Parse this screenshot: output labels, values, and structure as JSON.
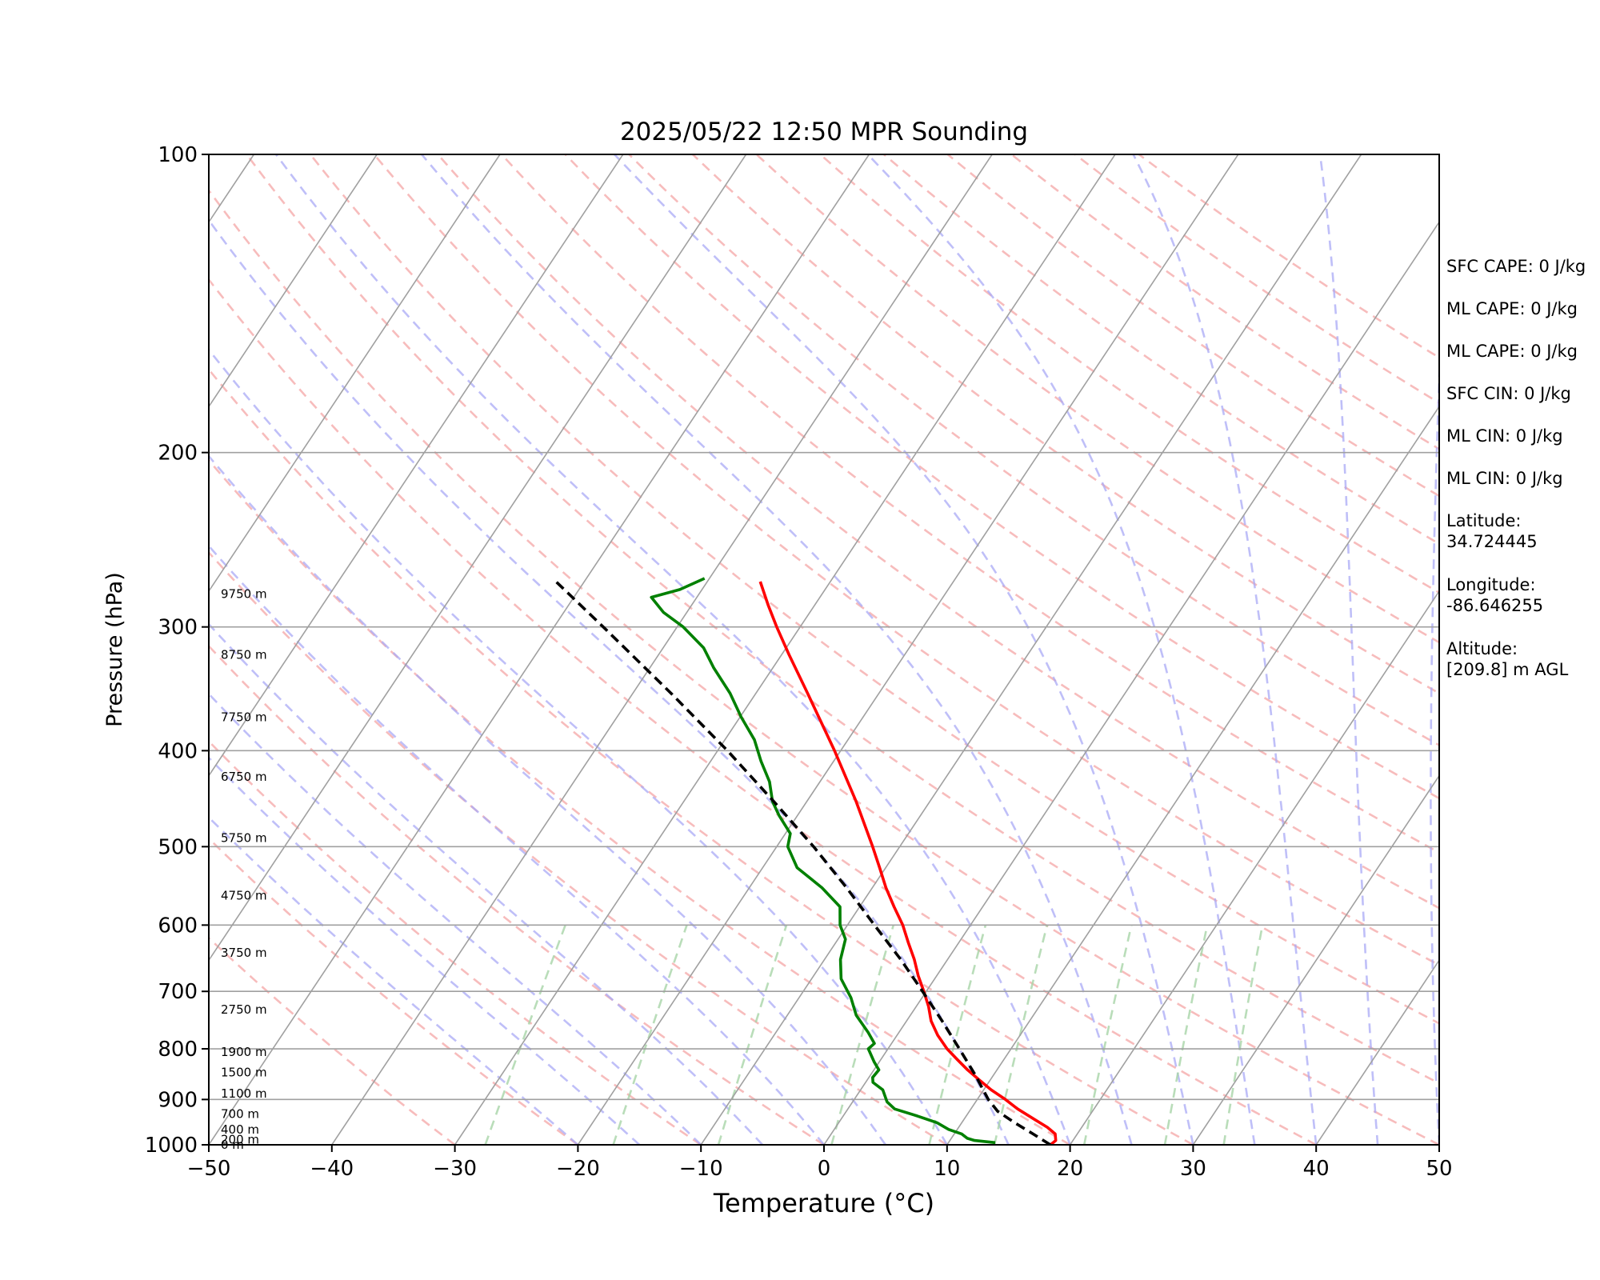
{
  "chart_data": {
    "type": "line",
    "title": "2025/05/22 12:50 MPR Sounding",
    "xlabel": "Temperature (°C)",
    "ylabel": "Pressure (hPa)",
    "xlim": [
      -50,
      50
    ],
    "ylim": [
      1000,
      100
    ],
    "y_scale": "log",
    "grid": true,
    "x_ticks": [
      -50,
      -40,
      -30,
      -20,
      -10,
      0,
      10,
      20,
      30,
      40,
      50
    ],
    "x_tick_labels": [
      "−50",
      "−40",
      "−30",
      "−20",
      "−10",
      "0",
      "10",
      "20",
      "30",
      "40",
      "50"
    ],
    "y_ticks": [
      1000,
      900,
      800,
      700,
      600,
      500,
      400,
      300,
      200,
      100
    ],
    "y_tick_labels": [
      "1000",
      "900",
      "800",
      "700",
      "600",
      "500",
      "400",
      "300",
      "200",
      "100"
    ],
    "height_labels": [
      {
        "p": 1000,
        "text": "0 m"
      },
      {
        "p": 988,
        "text": "200 m"
      },
      {
        "p": 965,
        "text": "400 m"
      },
      {
        "p": 931,
        "text": "700 m"
      },
      {
        "p": 888,
        "text": "1100 m"
      },
      {
        "p": 845,
        "text": "1500 m"
      },
      {
        "p": 806,
        "text": "1900 m"
      },
      {
        "p": 730,
        "text": "2750 m"
      },
      {
        "p": 640,
        "text": "3750 m"
      },
      {
        "p": 560,
        "text": "4750 m"
      },
      {
        "p": 490,
        "text": "5750 m"
      },
      {
        "p": 425,
        "text": "6750 m"
      },
      {
        "p": 370,
        "text": "7750 m"
      },
      {
        "p": 320,
        "text": "8750 m"
      },
      {
        "p": 278,
        "text": "9750 m"
      }
    ],
    "series": [
      {
        "name": "Temperature",
        "color": "#ff0000",
        "style": "solid",
        "points": [
          [
            1000,
            18.4
          ],
          [
            990,
            18.6
          ],
          [
            975,
            18.2
          ],
          [
            960,
            17.2
          ],
          [
            940,
            15.5
          ],
          [
            920,
            13.8
          ],
          [
            900,
            12.3
          ],
          [
            880,
            10.6
          ],
          [
            860,
            9.1
          ],
          [
            840,
            7.6
          ],
          [
            820,
            6.2
          ],
          [
            800,
            4.8
          ],
          [
            775,
            3.3
          ],
          [
            750,
            2.0
          ],
          [
            725,
            1.0
          ],
          [
            700,
            -0.2
          ],
          [
            675,
            -1.5
          ],
          [
            650,
            -2.7
          ],
          [
            625,
            -4.1
          ],
          [
            600,
            -5.5
          ],
          [
            575,
            -7.2
          ],
          [
            550,
            -8.9
          ],
          [
            525,
            -10.5
          ],
          [
            500,
            -12.2
          ],
          [
            450,
            -16.0
          ],
          [
            400,
            -20.5
          ],
          [
            350,
            -25.8
          ],
          [
            320,
            -29.4
          ],
          [
            300,
            -31.9
          ],
          [
            285,
            -33.8
          ],
          [
            270,
            -35.7
          ]
        ]
      },
      {
        "name": "Dewpoint",
        "color": "#008000",
        "style": "solid",
        "points": [
          [
            995,
            13.8
          ],
          [
            990,
            12.0
          ],
          [
            985,
            11.3
          ],
          [
            975,
            10.6
          ],
          [
            965,
            9.3
          ],
          [
            950,
            8.0
          ],
          [
            935,
            6.0
          ],
          [
            920,
            3.8
          ],
          [
            905,
            2.8
          ],
          [
            880,
            1.8
          ],
          [
            865,
            0.6
          ],
          [
            855,
            0.3
          ],
          [
            840,
            0.4
          ],
          [
            825,
            -0.4
          ],
          [
            800,
            -1.6
          ],
          [
            790,
            -1.4
          ],
          [
            770,
            -2.5
          ],
          [
            740,
            -4.4
          ],
          [
            710,
            -5.8
          ],
          [
            680,
            -7.6
          ],
          [
            650,
            -8.7
          ],
          [
            620,
            -9.4
          ],
          [
            600,
            -10.6
          ],
          [
            575,
            -11.6
          ],
          [
            550,
            -14.1
          ],
          [
            525,
            -17.2
          ],
          [
            500,
            -19.1
          ],
          [
            485,
            -19.6
          ],
          [
            465,
            -21.5
          ],
          [
            450,
            -22.8
          ],
          [
            430,
            -24.1
          ],
          [
            410,
            -25.9
          ],
          [
            390,
            -27.6
          ],
          [
            370,
            -29.9
          ],
          [
            350,
            -32.1
          ],
          [
            330,
            -34.8
          ],
          [
            315,
            -36.7
          ],
          [
            300,
            -39.5
          ],
          [
            290,
            -41.9
          ],
          [
            280,
            -43.7
          ],
          [
            275,
            -41.8
          ],
          [
            268,
            -40.4
          ]
        ]
      },
      {
        "name": "Parcel",
        "color": "#000000",
        "style": "dashed",
        "points": [
          [
            1000,
            18.4
          ],
          [
            975,
            16.4
          ],
          [
            950,
            14.3
          ],
          [
            925,
            12.3
          ],
          [
            900,
            10.9
          ],
          [
            850,
            8.5
          ],
          [
            800,
            5.8
          ],
          [
            750,
            2.9
          ],
          [
            700,
            -0.3
          ],
          [
            650,
            -3.8
          ],
          [
            600,
            -7.8
          ],
          [
            550,
            -12.1
          ],
          [
            500,
            -17.0
          ],
          [
            450,
            -22.7
          ],
          [
            400,
            -29.2
          ],
          [
            350,
            -36.9
          ],
          [
            300,
            -46.0
          ],
          [
            270,
            -52.3
          ]
        ]
      }
    ],
    "annotations": [
      "SFC CAPE: 0 J/kg",
      "ML CAPE: 0 J/kg",
      "ML CAPE: 0 J/kg",
      "SFC CIN: 0 J/kg",
      "ML CIN: 0 J/kg",
      "ML CIN: 0 J/kg",
      "Latitude:\n34.724445",
      "Longitude:\n-86.646255",
      "Altitude:\n[209.8] m AGL"
    ]
  }
}
